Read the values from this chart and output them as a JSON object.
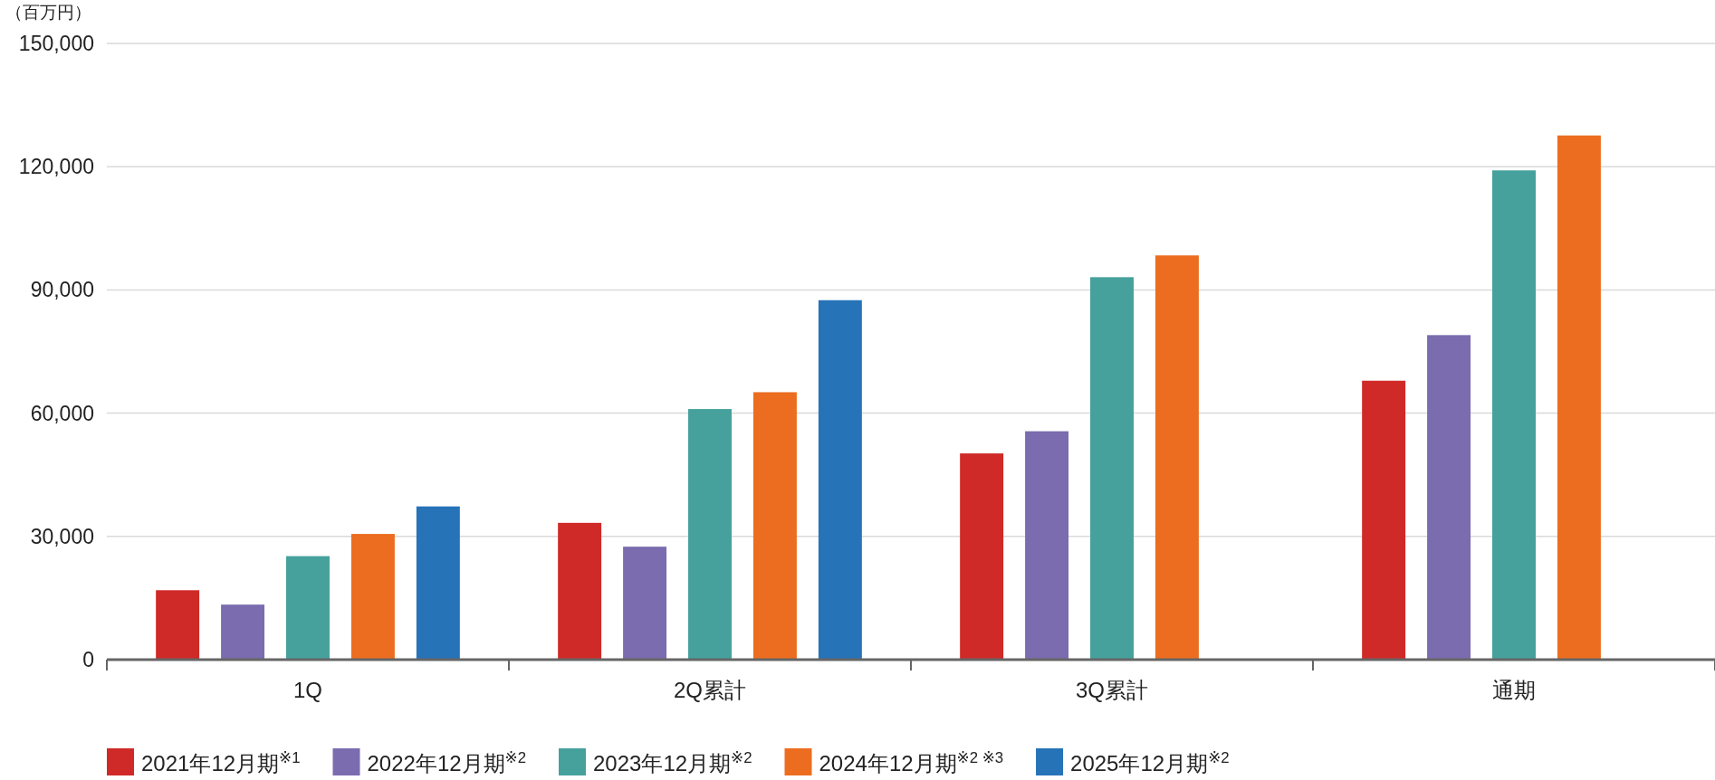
{
  "chart_data": {
    "type": "bar",
    "ylabel": "（百万円）",
    "categories": [
      "1Q",
      "2Q累計",
      "3Q累計",
      "通期"
    ],
    "series": [
      {
        "name": "2021年12月期$^{※1}$",
        "color": "#cf2a27",
        "values": [
          16900,
          33300,
          50200,
          67900
        ]
      },
      {
        "name": "2022年12月期$^{※2}$",
        "color": "#7a6caf",
        "values": [
          13400,
          27500,
          55600,
          79000
        ]
      },
      {
        "name": "2023年12月期$^{※2}$",
        "color": "#46a19c",
        "values": [
          25200,
          61000,
          93100,
          119100
        ]
      },
      {
        "name": "2024年12月期$^{※2 ※3}$",
        "color": "#ec6d1f",
        "values": [
          30600,
          65100,
          98400,
          127600
        ]
      },
      {
        "name": "2025年12月期$^{※2}$",
        "color": "#2673b8",
        "values": [
          37300,
          87500,
          null,
          null
        ]
      }
    ],
    "ylim": [
      0,
      150000
    ],
    "yticks": [
      {
        "value": 0,
        "label": "0"
      },
      {
        "value": 30000,
        "label": "30,000"
      },
      {
        "value": 60000,
        "label": "60,000"
      },
      {
        "value": 90000,
        "label": "90,000"
      },
      {
        "value": 120000,
        "label": "120,000"
      },
      {
        "value": 150000,
        "label": "150,000"
      }
    ],
    "grid": "y",
    "legend": "bottom"
  }
}
